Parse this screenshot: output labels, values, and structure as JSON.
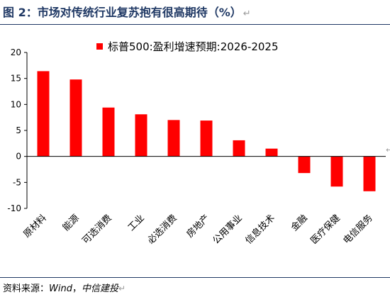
{
  "figure": {
    "title": "图 2：市场对传统行业复苏抱有很高期待（%）",
    "source_prefix": "资料来源：",
    "source_wind": "Wind",
    "source_sep": "，",
    "source_org": "中信建投",
    "return_mark": "↵"
  },
  "chart_data": {
    "type": "bar",
    "legend": "标普500:盈利增速预期:2026-2025",
    "legend_position": "top",
    "categories": [
      "原材料",
      "能源",
      "可选消费",
      "工业",
      "必选消费",
      "房地产",
      "公用事业",
      "信息技术",
      "金融",
      "医疗保健",
      "电信服务"
    ],
    "values": [
      16.4,
      14.8,
      9.4,
      8.1,
      7.0,
      6.9,
      3.1,
      1.5,
      -3.2,
      -5.8,
      -6.7
    ],
    "ylim": [
      -10,
      20
    ],
    "yticks": [
      -10,
      -5,
      0,
      5,
      10,
      15,
      20
    ],
    "ytick_labels": [
      "-10",
      "-5",
      "0",
      "5",
      "10",
      "15",
      "20"
    ],
    "grid": false,
    "bar_color": "#ff0000"
  }
}
